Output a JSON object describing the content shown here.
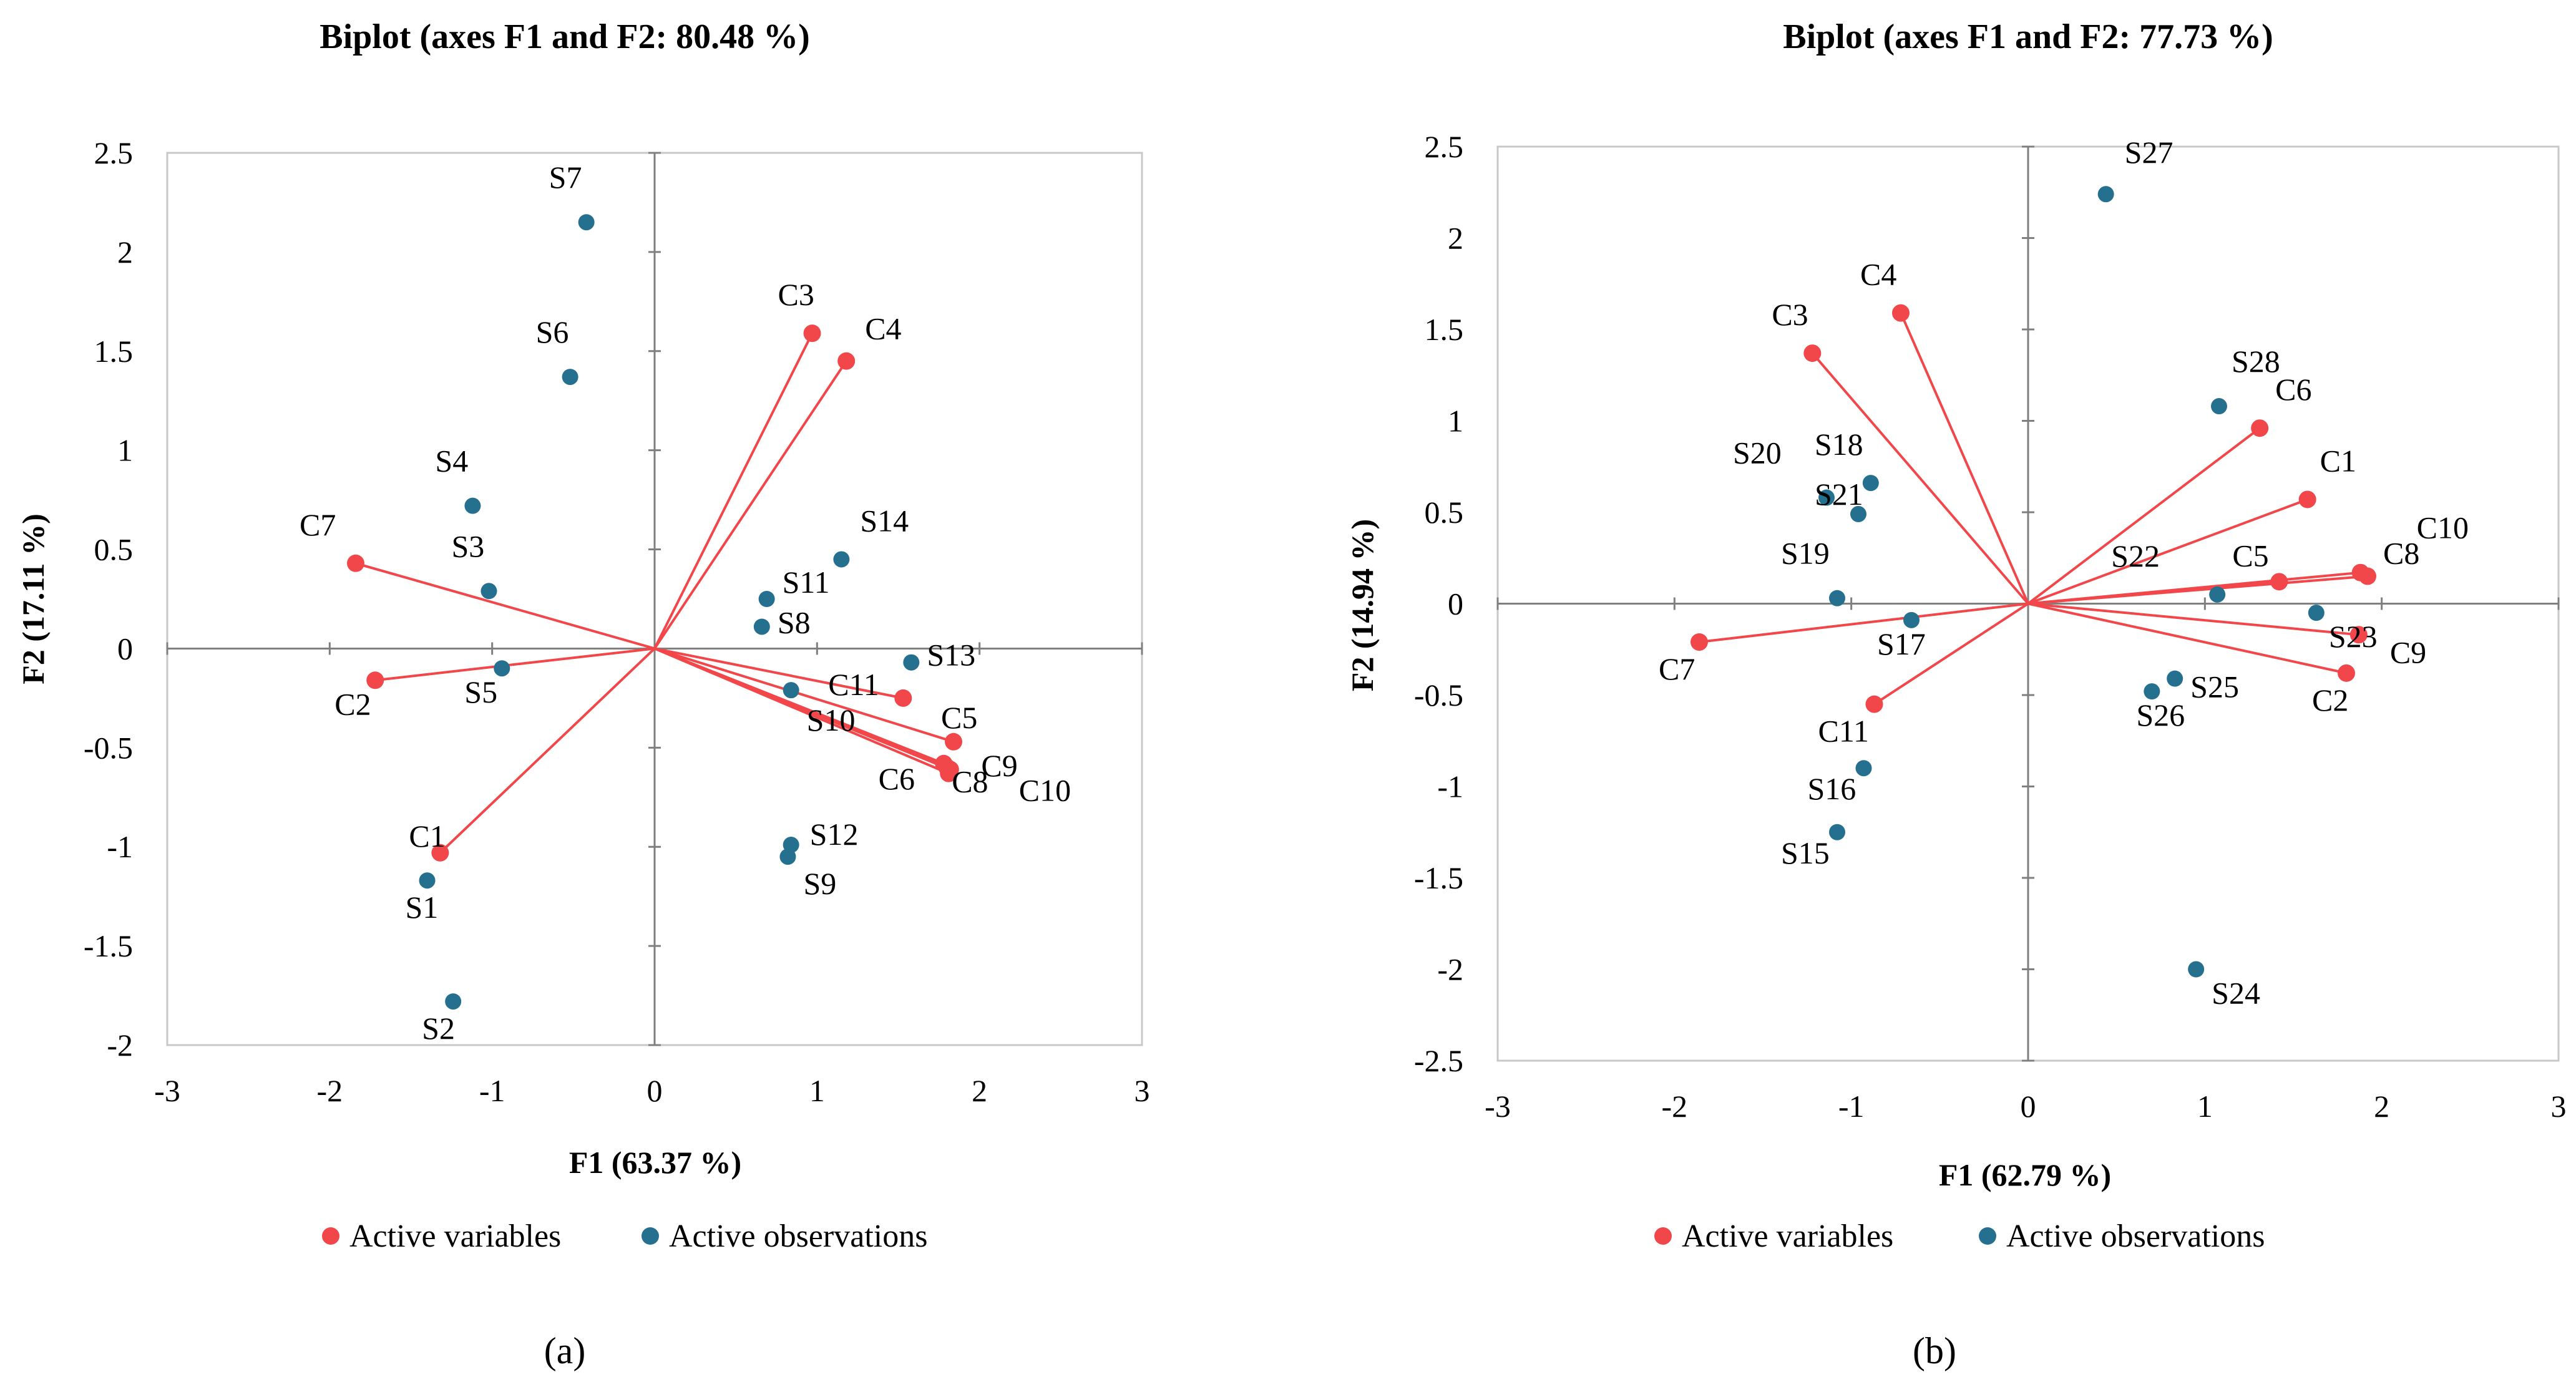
{
  "chart_data": [
    {
      "type": "scatter",
      "title": "Biplot (axes F1 and F2: 80.48 %)",
      "xlabel": "F1 (63.37 %)",
      "ylabel": "F2 (17.11 %)",
      "xlim": [
        -3,
        3
      ],
      "ylim": [
        -2,
        2.5
      ],
      "xticks": [
        "-3",
        "-2",
        "-1",
        "0",
        "1",
        "2",
        "3"
      ],
      "yticks": [
        "-2",
        "-1.5",
        "-1",
        "-0.5",
        "0",
        "0.5",
        "1",
        "1.5",
        "2",
        "2.5"
      ],
      "panel_label": "(a)",
      "legend": [
        "Active variables",
        "Active observations"
      ],
      "colors": {
        "variables": "#f2474a",
        "observations": "#26708f"
      },
      "variables": [
        {
          "name": "C1",
          "x": -1.32,
          "y": -1.03
        },
        {
          "name": "C2",
          "x": -1.72,
          "y": -0.16
        },
        {
          "name": "C3",
          "x": 0.97,
          "y": 1.59
        },
        {
          "name": "C4",
          "x": 1.18,
          "y": 1.45
        },
        {
          "name": "C5",
          "x": 1.84,
          "y": -0.47
        },
        {
          "name": "C6",
          "x": 1.8,
          "y": -0.6
        },
        {
          "name": "C7",
          "x": -1.84,
          "y": 0.43
        },
        {
          "name": "C8",
          "x": 1.81,
          "y": -0.63
        },
        {
          "name": "C9",
          "x": 1.78,
          "y": -0.58
        },
        {
          "name": "C10",
          "x": 1.82,
          "y": -0.61
        },
        {
          "name": "C11",
          "x": 1.53,
          "y": -0.25
        }
      ],
      "observations": [
        {
          "name": "S1",
          "x": -1.4,
          "y": -1.17
        },
        {
          "name": "S2",
          "x": -1.24,
          "y": -1.78
        },
        {
          "name": "S3",
          "x": -1.02,
          "y": 0.29
        },
        {
          "name": "S4",
          "x": -1.12,
          "y": 0.72
        },
        {
          "name": "S5",
          "x": -0.94,
          "y": -0.1
        },
        {
          "name": "S6",
          "x": -0.52,
          "y": 1.37
        },
        {
          "name": "S7",
          "x": -0.42,
          "y": 2.15
        },
        {
          "name": "S8",
          "x": 0.66,
          "y": 0.11
        },
        {
          "name": "S9",
          "x": 0.82,
          "y": -1.05
        },
        {
          "name": "S10",
          "x": 0.84,
          "y": -0.21
        },
        {
          "name": "S11",
          "x": 0.69,
          "y": 0.25
        },
        {
          "name": "S12",
          "x": 0.84,
          "y": -0.99
        },
        {
          "name": "S13",
          "x": 1.58,
          "y": -0.07
        },
        {
          "name": "S14",
          "x": 1.15,
          "y": 0.45
        }
      ]
    },
    {
      "type": "scatter",
      "title": "Biplot (axes F1 and F2: 77.73 %)",
      "xlabel": "F1 (62.79 %)",
      "ylabel": "F2 (14.94 %)",
      "xlim": [
        -3,
        3
      ],
      "ylim": [
        -2.5,
        2.5
      ],
      "xticks": [
        "-3",
        "-2",
        "-1",
        "0",
        "1",
        "2",
        "3"
      ],
      "yticks": [
        "-2.5",
        "-2",
        "-1.5",
        "-1",
        "-0.5",
        "0",
        "0.5",
        "1",
        "1.5",
        "2",
        "2.5"
      ],
      "panel_label": "(b)",
      "legend": [
        "Active variables",
        "Active observations"
      ],
      "colors": {
        "variables": "#f2474a",
        "observations": "#26708f"
      },
      "variables": [
        {
          "name": "C1",
          "x": 1.58,
          "y": 0.57
        },
        {
          "name": "C2",
          "x": 1.8,
          "y": -0.38
        },
        {
          "name": "C3",
          "x": -1.22,
          "y": 1.37
        },
        {
          "name": "C4",
          "x": -0.72,
          "y": 1.59
        },
        {
          "name": "C5",
          "x": 1.42,
          "y": 0.12
        },
        {
          "name": "C6",
          "x": 1.31,
          "y": 0.96
        },
        {
          "name": "C7",
          "x": -1.86,
          "y": -0.21
        },
        {
          "name": "C8",
          "x": 1.92,
          "y": 0.15
        },
        {
          "name": "C9",
          "x": 1.87,
          "y": -0.17
        },
        {
          "name": "C10",
          "x": 1.88,
          "y": 0.17
        },
        {
          "name": "C11",
          "x": -0.87,
          "y": -0.55
        }
      ],
      "observations": [
        {
          "name": "S15",
          "x": -1.08,
          "y": -1.25
        },
        {
          "name": "S16",
          "x": -0.93,
          "y": -0.9
        },
        {
          "name": "S17",
          "x": -0.66,
          "y": -0.09
        },
        {
          "name": "S18",
          "x": -0.89,
          "y": 0.66
        },
        {
          "name": "S19",
          "x": -1.08,
          "y": 0.03
        },
        {
          "name": "S20",
          "x": -1.14,
          "y": 0.58
        },
        {
          "name": "S21",
          "x": -0.96,
          "y": 0.49
        },
        {
          "name": "S22",
          "x": 1.07,
          "y": 0.05
        },
        {
          "name": "S23",
          "x": 1.63,
          "y": -0.05
        },
        {
          "name": "S24",
          "x": 0.95,
          "y": -2.0
        },
        {
          "name": "S25",
          "x": 0.83,
          "y": -0.41
        },
        {
          "name": "S26",
          "x": 0.7,
          "y": -0.48
        },
        {
          "name": "S27",
          "x": 0.44,
          "y": 2.24
        },
        {
          "name": "S28",
          "x": 1.08,
          "y": 1.08
        }
      ]
    }
  ]
}
